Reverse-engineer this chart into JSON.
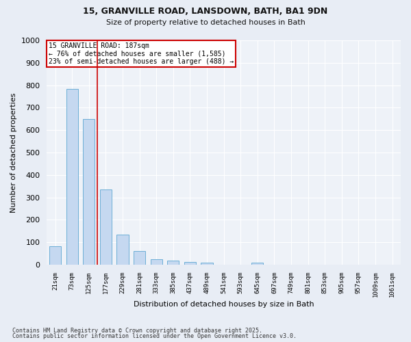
{
  "title_line1": "15, GRANVILLE ROAD, LANSDOWN, BATH, BA1 9DN",
  "title_line2": "Size of property relative to detached houses in Bath",
  "xlabel": "Distribution of detached houses by size in Bath",
  "ylabel": "Number of detached properties",
  "categories": [
    "21sqm",
    "73sqm",
    "125sqm",
    "177sqm",
    "229sqm",
    "281sqm",
    "333sqm",
    "385sqm",
    "437sqm",
    "489sqm",
    "541sqm",
    "593sqm",
    "645sqm",
    "697sqm",
    "749sqm",
    "801sqm",
    "853sqm",
    "905sqm",
    "957sqm",
    "1009sqm",
    "1061sqm"
  ],
  "values": [
    83,
    783,
    650,
    335,
    133,
    60,
    25,
    20,
    13,
    8,
    0,
    0,
    10,
    0,
    0,
    0,
    0,
    0,
    0,
    0,
    0
  ],
  "bar_color": "#c5d8f0",
  "bar_edge_color": "#6baed6",
  "red_line_x": 2.5,
  "annotation_line1": "15 GRANVILLE ROAD: 187sqm",
  "annotation_line2": "← 76% of detached houses are smaller (1,585)",
  "annotation_line3": "23% of semi-detached houses are larger (488) →",
  "annotation_box_color": "#ffffff",
  "annotation_box_edge": "#cc0000",
  "ylim": [
    0,
    1000
  ],
  "yticks": [
    0,
    100,
    200,
    300,
    400,
    500,
    600,
    700,
    800,
    900,
    1000
  ],
  "footer_line1": "Contains HM Land Registry data © Crown copyright and database right 2025.",
  "footer_line2": "Contains public sector information licensed under the Open Government Licence v3.0.",
  "background_color": "#e8edf5",
  "plot_background_color": "#eef2f8",
  "grid_color": "#ffffff"
}
